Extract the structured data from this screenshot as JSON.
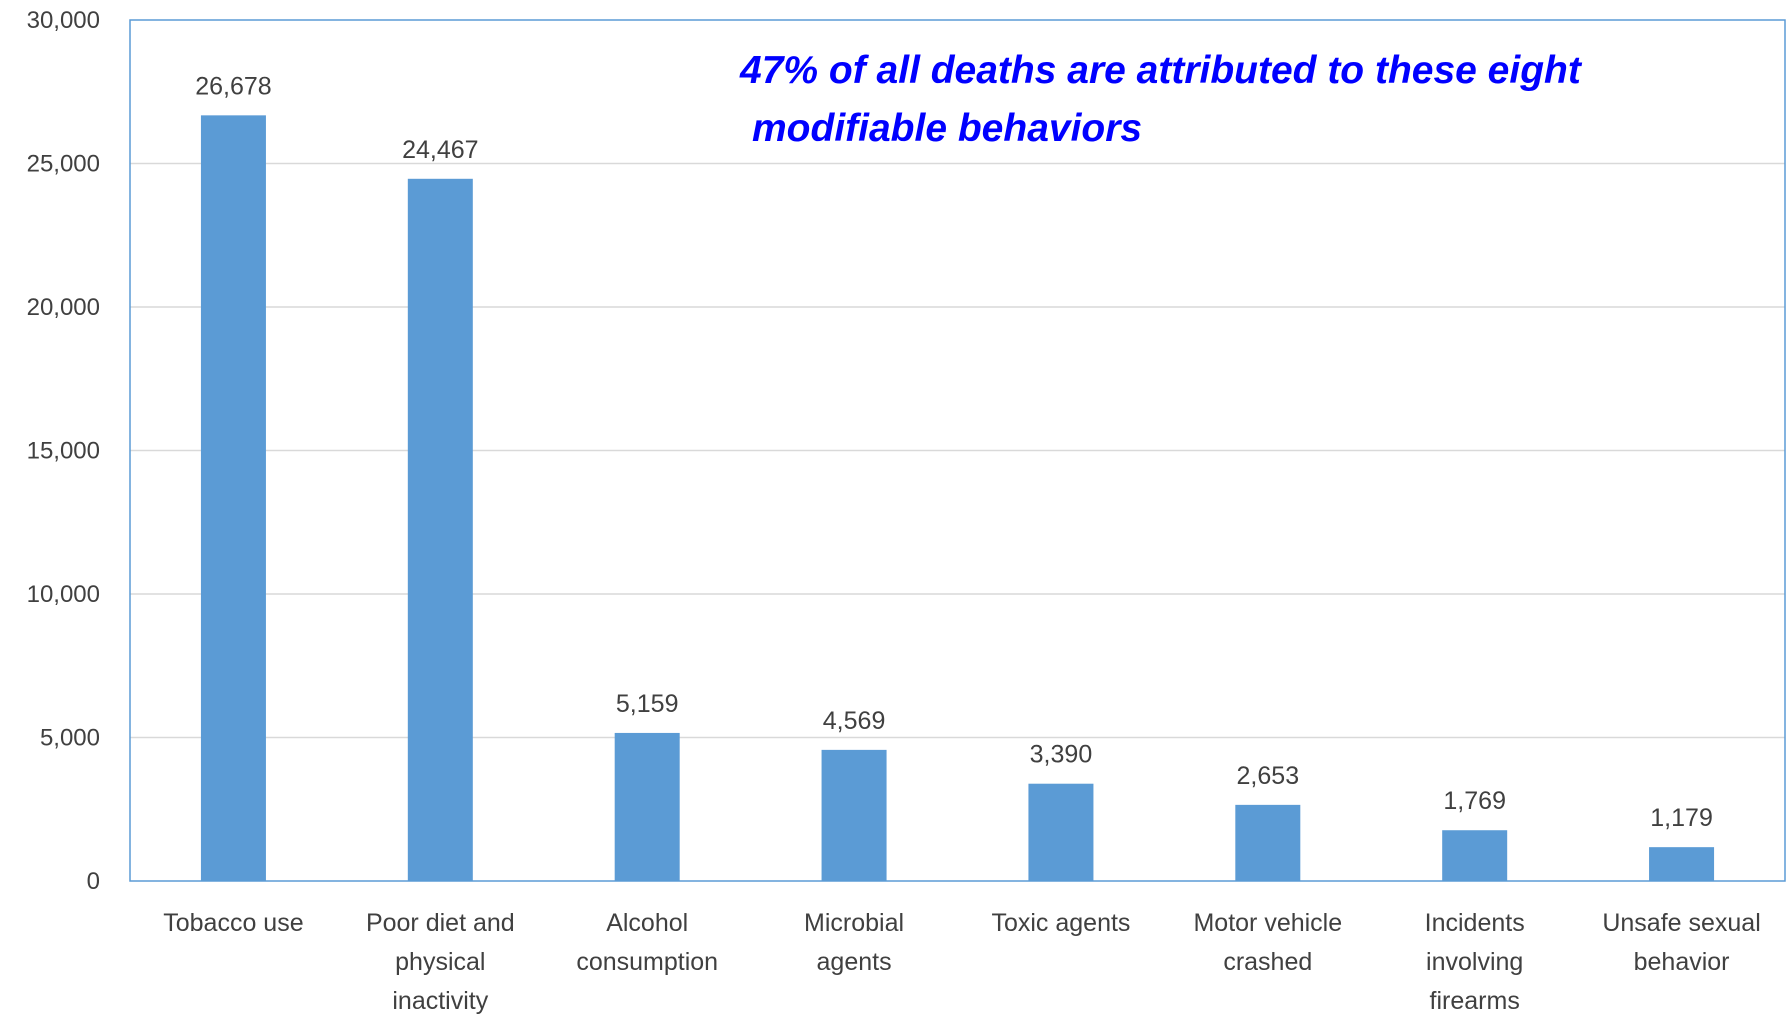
{
  "chart_data": {
    "type": "bar",
    "categories": [
      [
        "Tobacco use"
      ],
      [
        "Poor diet and",
        "physical",
        "inactivity"
      ],
      [
        "Alcohol",
        "consumption"
      ],
      [
        "Microbial",
        "agents"
      ],
      [
        "Toxic agents"
      ],
      [
        "Motor vehicle",
        "crashed"
      ],
      [
        "Incidents",
        "involving",
        "firearms"
      ],
      [
        "Unsafe sexual",
        "behavior"
      ]
    ],
    "values": [
      26678,
      24467,
      5159,
      4569,
      3390,
      2653,
      1769,
      1179
    ],
    "value_labels": [
      "26,678",
      "24,467",
      "5,159",
      "4,569",
      "3,390",
      "2,653",
      "1,769",
      "1,179"
    ],
    "ylim": [
      0,
      30000
    ],
    "yticks": [
      0,
      5000,
      10000,
      15000,
      20000,
      25000,
      30000
    ],
    "ytick_labels": [
      "0",
      "5,000",
      "10,000",
      "15,000",
      "20,000",
      "25,000",
      "30,000"
    ],
    "grid": true,
    "annotation": [
      "47% of all deaths are attributed to these eight",
      "modifiable behaviors"
    ],
    "colors": {
      "bar": "#5b9bd5",
      "annotation": "#0000ff",
      "frame": "#5b9bd5",
      "grid": "#d9d9d9"
    }
  }
}
